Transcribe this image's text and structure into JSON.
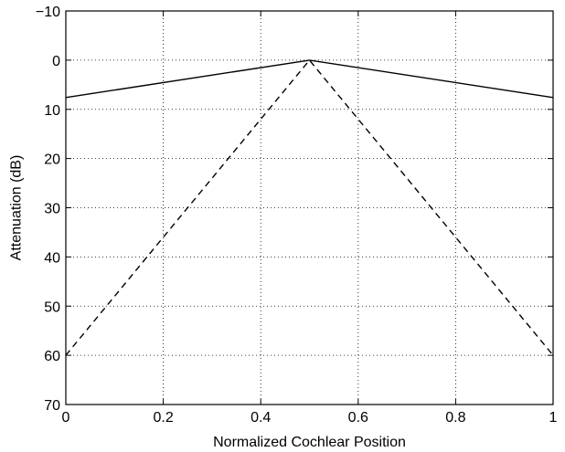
{
  "chart_data": {
    "type": "line",
    "title": "",
    "xlabel": "Normalized Cochlear Position",
    "ylabel": "Attenuation (dB)",
    "xlim": [
      0,
      1
    ],
    "ylim": [
      -10,
      70
    ],
    "y_reversed": true,
    "grid": true,
    "x_ticks": [
      0,
      0.2,
      0.4,
      0.6,
      0.8,
      1
    ],
    "x_tick_labels": [
      "0",
      "0.2",
      "0.4",
      "0.6",
      "0.8",
      "1"
    ],
    "y_ticks": [
      -10,
      0,
      10,
      20,
      30,
      40,
      50,
      60,
      70
    ],
    "y_tick_labels": [
      "−10",
      "0",
      "10",
      "20",
      "30",
      "40",
      "50",
      "60",
      "70"
    ],
    "series": [
      {
        "style": "solid",
        "color": "#000000",
        "x": [
          0,
          0.5,
          1
        ],
        "y": [
          7.6,
          0,
          7.6
        ]
      },
      {
        "style": "dashed",
        "color": "#000000",
        "x": [
          0,
          0.5,
          1
        ],
        "y": [
          60,
          0,
          60
        ]
      }
    ]
  }
}
